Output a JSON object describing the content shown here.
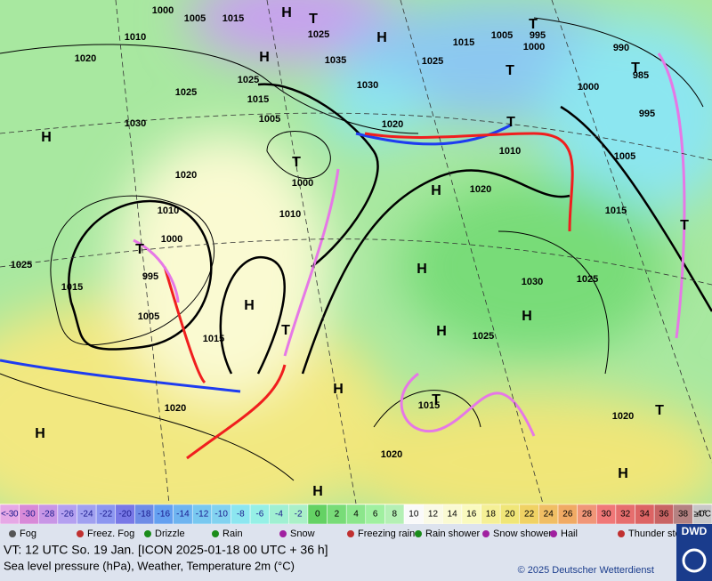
{
  "map": {
    "pressure_labels": [
      "1000",
      "1005",
      "1015",
      "1010",
      "1020",
      "1025",
      "1035",
      "1025",
      "1030",
      "1025",
      "1015",
      "1005",
      "1030",
      "1020",
      "1025",
      "1015",
      "1005",
      "1000",
      "995",
      "990",
      "985",
      "1000",
      "995",
      "1005",
      "1015",
      "1010",
      "1020",
      "1000",
      "1010",
      "1020",
      "1010",
      "1000",
      "995",
      "1015",
      "1025",
      "1005",
      "1015",
      "1030",
      "1025",
      "1025",
      "1015",
      "1020",
      "1020",
      "1020"
    ],
    "systems": [
      "H",
      "T",
      "H",
      "H",
      "H",
      "T",
      "H",
      "T",
      "H",
      "H",
      "T",
      "H",
      "H",
      "H",
      "T",
      "H",
      "H",
      "H",
      "T",
      "T",
      "T",
      "T",
      "T",
      "T"
    ]
  },
  "colorbar": [
    {
      "label": "<-30",
      "color": "#e6a8e6"
    },
    {
      "label": "-30",
      "color": "#d88ad8"
    },
    {
      "label": "-28",
      "color": "#c896e6"
    },
    {
      "label": "-26",
      "color": "#b4a0f0"
    },
    {
      "label": "-24",
      "color": "#a0a0f0"
    },
    {
      "label": "-22",
      "color": "#8c96f0"
    },
    {
      "label": "-20",
      "color": "#7878e6"
    },
    {
      "label": "-18",
      "color": "#6e8ce6"
    },
    {
      "label": "-16",
      "color": "#64a0f0"
    },
    {
      "label": "-14",
      "color": "#6eb4f0"
    },
    {
      "label": "-12",
      "color": "#78c8f0"
    },
    {
      "label": "-10",
      "color": "#82d2f0"
    },
    {
      "label": "-8",
      "color": "#8ce6f0"
    },
    {
      "label": "-6",
      "color": "#96f0e6"
    },
    {
      "label": "-4",
      "color": "#a0f0d2"
    },
    {
      "label": "-2",
      "color": "#aaf0c8"
    },
    {
      "label": "0",
      "color": "#64d264"
    },
    {
      "label": "2",
      "color": "#78dc78"
    },
    {
      "label": "4",
      "color": "#8ce68c"
    },
    {
      "label": "6",
      "color": "#a0f0a0"
    },
    {
      "label": "8",
      "color": "#b4f0b4"
    },
    {
      "label": "10",
      "color": "#fafafa"
    },
    {
      "label": "12",
      "color": "#fafae6"
    },
    {
      "label": "14",
      "color": "#fafad2"
    },
    {
      "label": "16",
      "color": "#fafabe"
    },
    {
      "label": "18",
      "color": "#f5f096"
    },
    {
      "label": "20",
      "color": "#f0e678"
    },
    {
      "label": "22",
      "color": "#f0d264"
    },
    {
      "label": "24",
      "color": "#f0be64"
    },
    {
      "label": "26",
      "color": "#f0aa64"
    },
    {
      "label": "28",
      "color": "#f09678"
    },
    {
      "label": "30",
      "color": "#f07878"
    },
    {
      "label": "32",
      "color": "#e66e6e"
    },
    {
      "label": "34",
      "color": "#dc6464"
    },
    {
      "label": "36",
      "color": "#c86464"
    },
    {
      "label": "38",
      "color": "#b48282"
    },
    {
      "label": "≥40 °C",
      "color": "#c8c8c8"
    }
  ],
  "legend": [
    "Fog",
    "Freez. Fog",
    "Drizzle",
    "Rain",
    "Snow",
    "Freezing rain",
    "Rain shower",
    "Snow shower",
    "Hail",
    "Thunder storm"
  ],
  "footer": {
    "valid_time": "VT: 12 UTC So.  19 Jan. [ICON 2025-01-18  00 UTC + 36 h]",
    "description": "Sea level pressure (hPa), Weather, Temperature 2m (°C)",
    "copyright": "© 2025 Deutscher Wetterdienst",
    "logo": "DWD"
  }
}
